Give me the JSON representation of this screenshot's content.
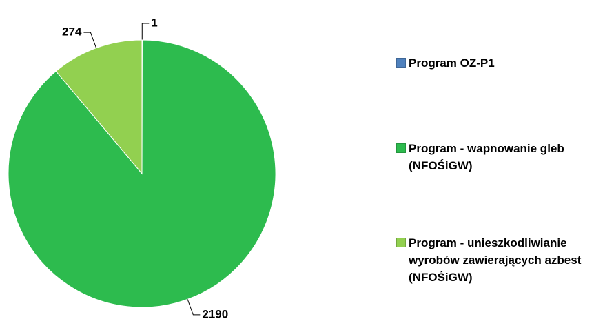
{
  "chart_data": {
    "type": "pie",
    "categories": [
      "Program OZ-P1",
      "Program - wapnowanie gleb (NFOŚiGW)",
      "Program - unieszkodliwianie wyrobów zawierających azbest (NFOŚiGW)"
    ],
    "values": [
      1,
      2190,
      274
    ],
    "colors": [
      "#4f81bd",
      "#2dbb4e",
      "#92d050"
    ],
    "legend": "right"
  }
}
